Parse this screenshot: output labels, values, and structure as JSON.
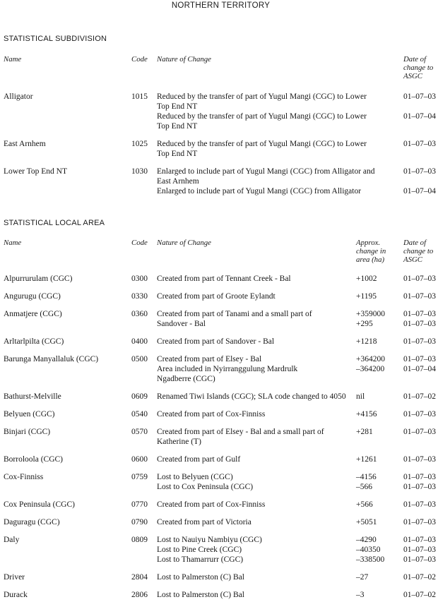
{
  "title": "NORTHERN TERRITORY",
  "sections": [
    {
      "heading": "STATISTICAL SUBDIVISION",
      "columns": [
        "Name",
        "Code",
        "Nature of Change",
        "Date of\nchange to\nASGC"
      ],
      "has_area_column": false,
      "rows": [
        {
          "name": "Alligator",
          "code": "1015",
          "changes": [
            {
              "text": "Reduced by the transfer of part of Yugul Mangi (CGC) to Lower\nTop End NT",
              "date": "01–07–03"
            },
            {
              "text": "Reduced by the transfer of part of Yugul Mangi (CGC) to Lower\nTop End NT",
              "date": "01–07–04"
            }
          ]
        },
        {
          "name": "East Arnhem",
          "code": "1025",
          "changes": [
            {
              "text": "Reduced by the transfer of part of Yugul Mangi (CGC) to Lower\nTop End NT",
              "date": "01–07–03"
            }
          ]
        },
        {
          "name": "Lower Top End NT",
          "code": "1030",
          "changes": [
            {
              "text": "Enlarged to include part of Yugul Mangi (CGC) from Alligator and\nEast Arnhem",
              "date": "01–07–03"
            },
            {
              "text": "Enlarged to include part of Yugul Mangi (CGC) from Alligator",
              "date": "01–07–04"
            }
          ]
        }
      ]
    },
    {
      "heading": "STATISTICAL LOCAL AREA",
      "columns": [
        "Name",
        "Code",
        "Nature of Change",
        "Approx.\nchange in\narea (ha)",
        "Date of\nchange to\nASGC"
      ],
      "has_area_column": true,
      "rows": [
        {
          "name": "Alpurrurulam (CGC)",
          "code": "0300",
          "changes": [
            {
              "text": "Created from part of Tennant Creek - Bal",
              "area": "+1002",
              "date": "01–07–03"
            }
          ]
        },
        {
          "name": "Angurugu (CGC)",
          "code": "0330",
          "changes": [
            {
              "text": "Created from part of Groote Eylandt",
              "area": "+1195",
              "date": "01–07–03"
            }
          ]
        },
        {
          "name": "Anmatjere (CGC)",
          "code": "0360",
          "changes": [
            {
              "text": "Created from part of Tanami and a small part of",
              "area": "+359000",
              "date": "01–07–03"
            },
            {
              "text": "Sandover - Bal",
              "area": "+295",
              "date": "01–07–03"
            }
          ]
        },
        {
          "name": "Arltarlpilta (CGC)",
          "code": "0400",
          "changes": [
            {
              "text": "Created from part of Sandover - Bal",
              "area": "+1218",
              "date": "01–07–03"
            }
          ]
        },
        {
          "name": "Barunga Manyallaluk (CGC)",
          "code": "0500",
          "changes": [
            {
              "text": "Created from part of Elsey - Bal",
              "area": "+364200",
              "date": "01–07–03"
            },
            {
              "text": "Area included in Nyirranggulung Mardrulk\nNgadberre (CGC)",
              "area": "–364200",
              "date": "01–07–04"
            }
          ]
        },
        {
          "name": "Bathurst-Melville",
          "code": "0609",
          "changes": [
            {
              "text": "Renamed Tiwi Islands (CGC); SLA code changed to 4050",
              "area": "nil",
              "date": "01–07–02"
            }
          ]
        },
        {
          "name": "Belyuen (CGC)",
          "code": "0540",
          "changes": [
            {
              "text": "Created from part of Cox-Finniss",
              "area": "+4156",
              "date": "01–07–03"
            }
          ]
        },
        {
          "name": "Binjari (CGC)",
          "code": "0570",
          "changes": [
            {
              "text": "Created from part of Elsey - Bal and a small part of\nKatherine (T)",
              "area": "+281",
              "date": "01–07–03"
            }
          ]
        },
        {
          "name": "Borroloola (CGC)",
          "code": "0600",
          "changes": [
            {
              "text": "Created from part of Gulf",
              "area": "+1261",
              "date": "01–07–03"
            }
          ]
        },
        {
          "name": "Cox-Finniss",
          "code": "0759",
          "changes": [
            {
              "text": "Lost to Belyuen (CGC)",
              "area": "–4156",
              "date": "01–07–03"
            },
            {
              "text": "Lost to Cox Peninsula (CGC)",
              "area": "–566",
              "date": "01–07–03"
            }
          ]
        },
        {
          "name": "Cox Peninsula (CGC)",
          "code": "0770",
          "changes": [
            {
              "text": "Created from part of Cox-Finniss",
              "area": "+566",
              "date": "01–07–03"
            }
          ]
        },
        {
          "name": "Daguragu (CGC)",
          "code": "0790",
          "changes": [
            {
              "text": "Created from part of Victoria",
              "area": "+5051",
              "date": "01–07–03"
            }
          ]
        },
        {
          "name": "Daly",
          "code": "0809",
          "changes": [
            {
              "text": "Lost to Nauiyu Nambiyu (CGC)",
              "area": "–4290",
              "date": "01–07–03"
            },
            {
              "text": "Lost to Pine Creek (CGC)",
              "area": "–40350",
              "date": "01–07–03"
            },
            {
              "text": "Lost to Thamarrurr (CGC)",
              "area": "–338500",
              "date": "01–07–03"
            }
          ]
        },
        {
          "name": "Driver",
          "code": "2804",
          "changes": [
            {
              "text": "Lost to Palmerston (C) Bal",
              "area": "–27",
              "date": "01–07–02"
            }
          ]
        },
        {
          "name": "Durack",
          "code": "2806",
          "changes": [
            {
              "text": "Lost to Palmerston (C) Bal",
              "area": "–3",
              "date": "01–07–02"
            }
          ]
        }
      ]
    }
  ]
}
